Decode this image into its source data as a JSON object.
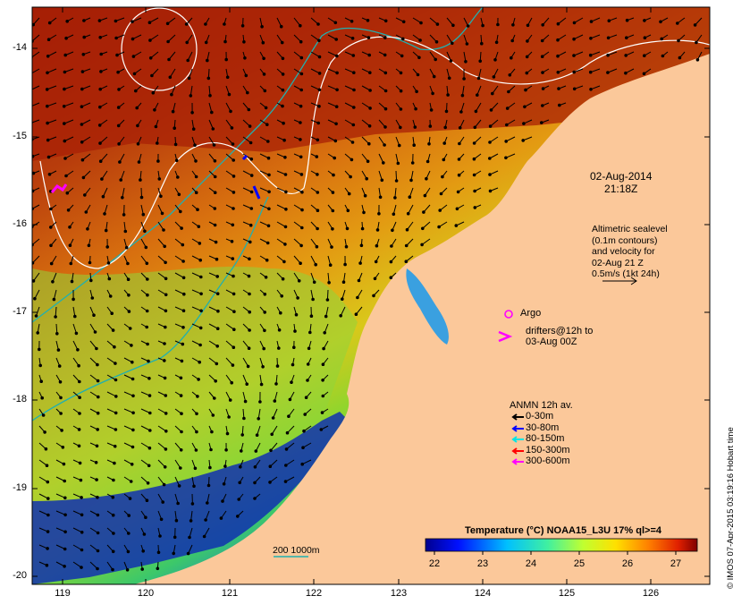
{
  "map": {
    "x_ticks": [
      "119",
      "120",
      "121",
      "122",
      "123",
      "124",
      "125",
      "126"
    ],
    "y_ticks": [
      "-14",
      "-15",
      "-16",
      "-17",
      "-18",
      "-19",
      "-20"
    ],
    "date_line1": "02-Aug-2014",
    "date_line2": "21:18Z",
    "altimetry_lines": [
      "Altimetric sealevel",
      "(0.1m contours)",
      "and velocity for",
      "02-Aug 21 Z",
      "0.5m/s (1kt 24h)"
    ],
    "argo_label": "Argo",
    "drifters_line1": "drifters@12h to",
    "drifters_line2": "03-Aug 00Z",
    "anmn_title": "ANMN 12h av.",
    "anmn_legend": [
      {
        "label": "0-30m",
        "color": "#000000"
      },
      {
        "label": "30-80m",
        "color": "#0000ff"
      },
      {
        "label": "80-150m",
        "color": "#00e5e5"
      },
      {
        "label": "150-300m",
        "color": "#ff0000"
      },
      {
        "label": "300-600m",
        "color": "#ff00ff"
      }
    ],
    "colorbar_title": "Temperature (°C) NOAA15_L3U 17% ql>=4",
    "colorbar_ticks": [
      "22",
      "23",
      "24",
      "25",
      "26",
      "27"
    ],
    "scale_label": "200  1000m",
    "credit": "© IMOS 07-Apr-2015 03:19:16 Hobart time",
    "colors": {
      "land": "#fbc89a",
      "isobath": "#20b0b0",
      "sealevel_contour": "#ffffff",
      "argo": "#ff00ff"
    }
  }
}
